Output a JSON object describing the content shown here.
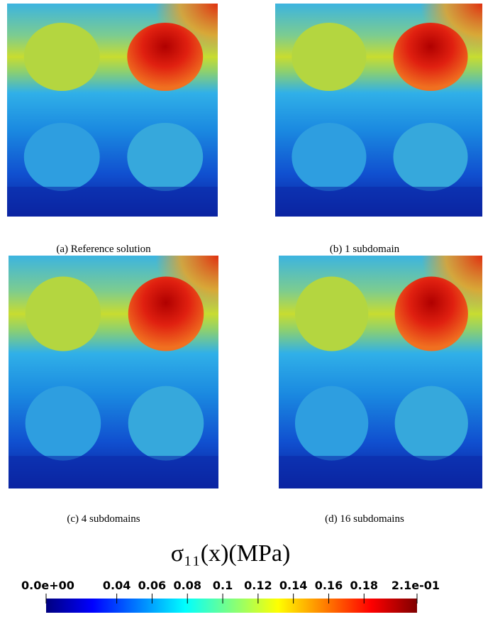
{
  "panels": [
    {
      "caption": "(a) Reference solution"
    },
    {
      "caption": "(b) 1 subdomain"
    },
    {
      "caption": "(c) 4 subdomains"
    },
    {
      "caption": "(d) 16 subdomains"
    }
  ],
  "colorbar": {
    "title": "σ₁₁(x)(MPa)",
    "lim": [
      0,
      0.21
    ],
    "ticks": [
      {
        "value": 0,
        "label": "0.0e+00"
      },
      0.04,
      0.06,
      0.08,
      0.1,
      0.12,
      0.14,
      0.16,
      0.18,
      {
        "value": 0.21,
        "label": "2.1e-01"
      }
    ]
  }
}
